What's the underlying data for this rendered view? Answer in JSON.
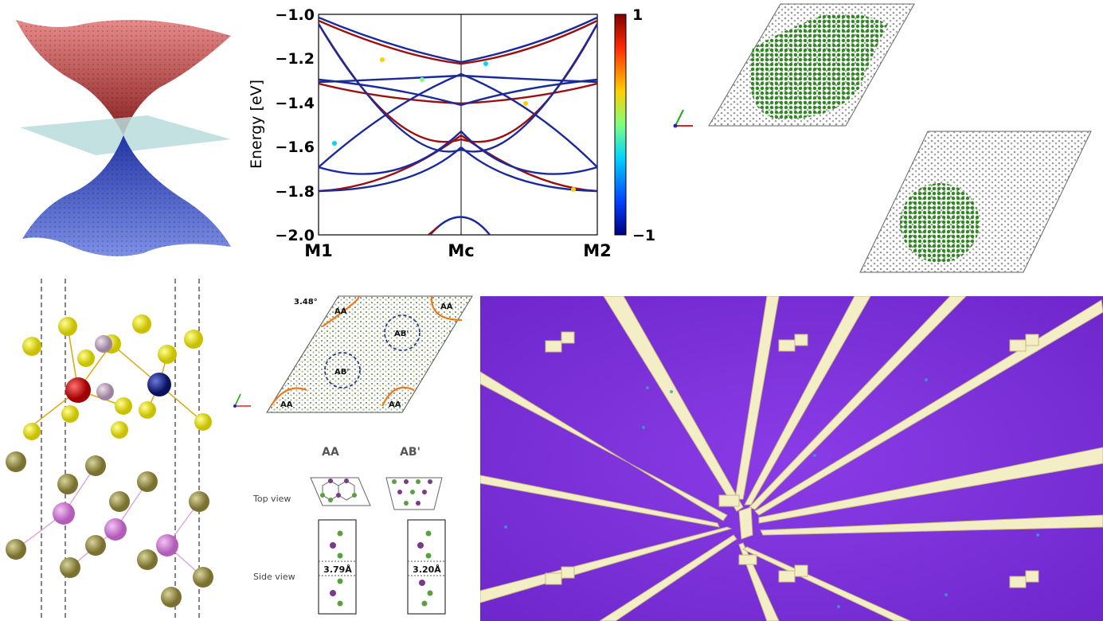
{
  "band_plot": {
    "y_axis_label": "Energy [eV]",
    "y_ticks": [
      "−1.0",
      "−1.2",
      "−1.4",
      "−1.6",
      "−1.8",
      "−2.0"
    ],
    "x_ticks": [
      "M1",
      "Mc",
      "M2"
    ],
    "colorbar_max": "1",
    "colorbar_min": "−1"
  },
  "stacking": {
    "twist_angle": "3.48°",
    "region_aa": "AA",
    "region_ab": "AB'",
    "col_aa": "AA",
    "col_ab": "AB'",
    "top_view": "Top view",
    "side_view": "Side view",
    "spacing_aa": "3.79Å",
    "spacing_ab": "3.20Å"
  },
  "colors": {
    "conduction": "#c85a5a",
    "valence": "#3f53c2",
    "plane": "#b8dcdc",
    "device_bg": "#7a2fd8",
    "electrode": "#f4eec7"
  }
}
